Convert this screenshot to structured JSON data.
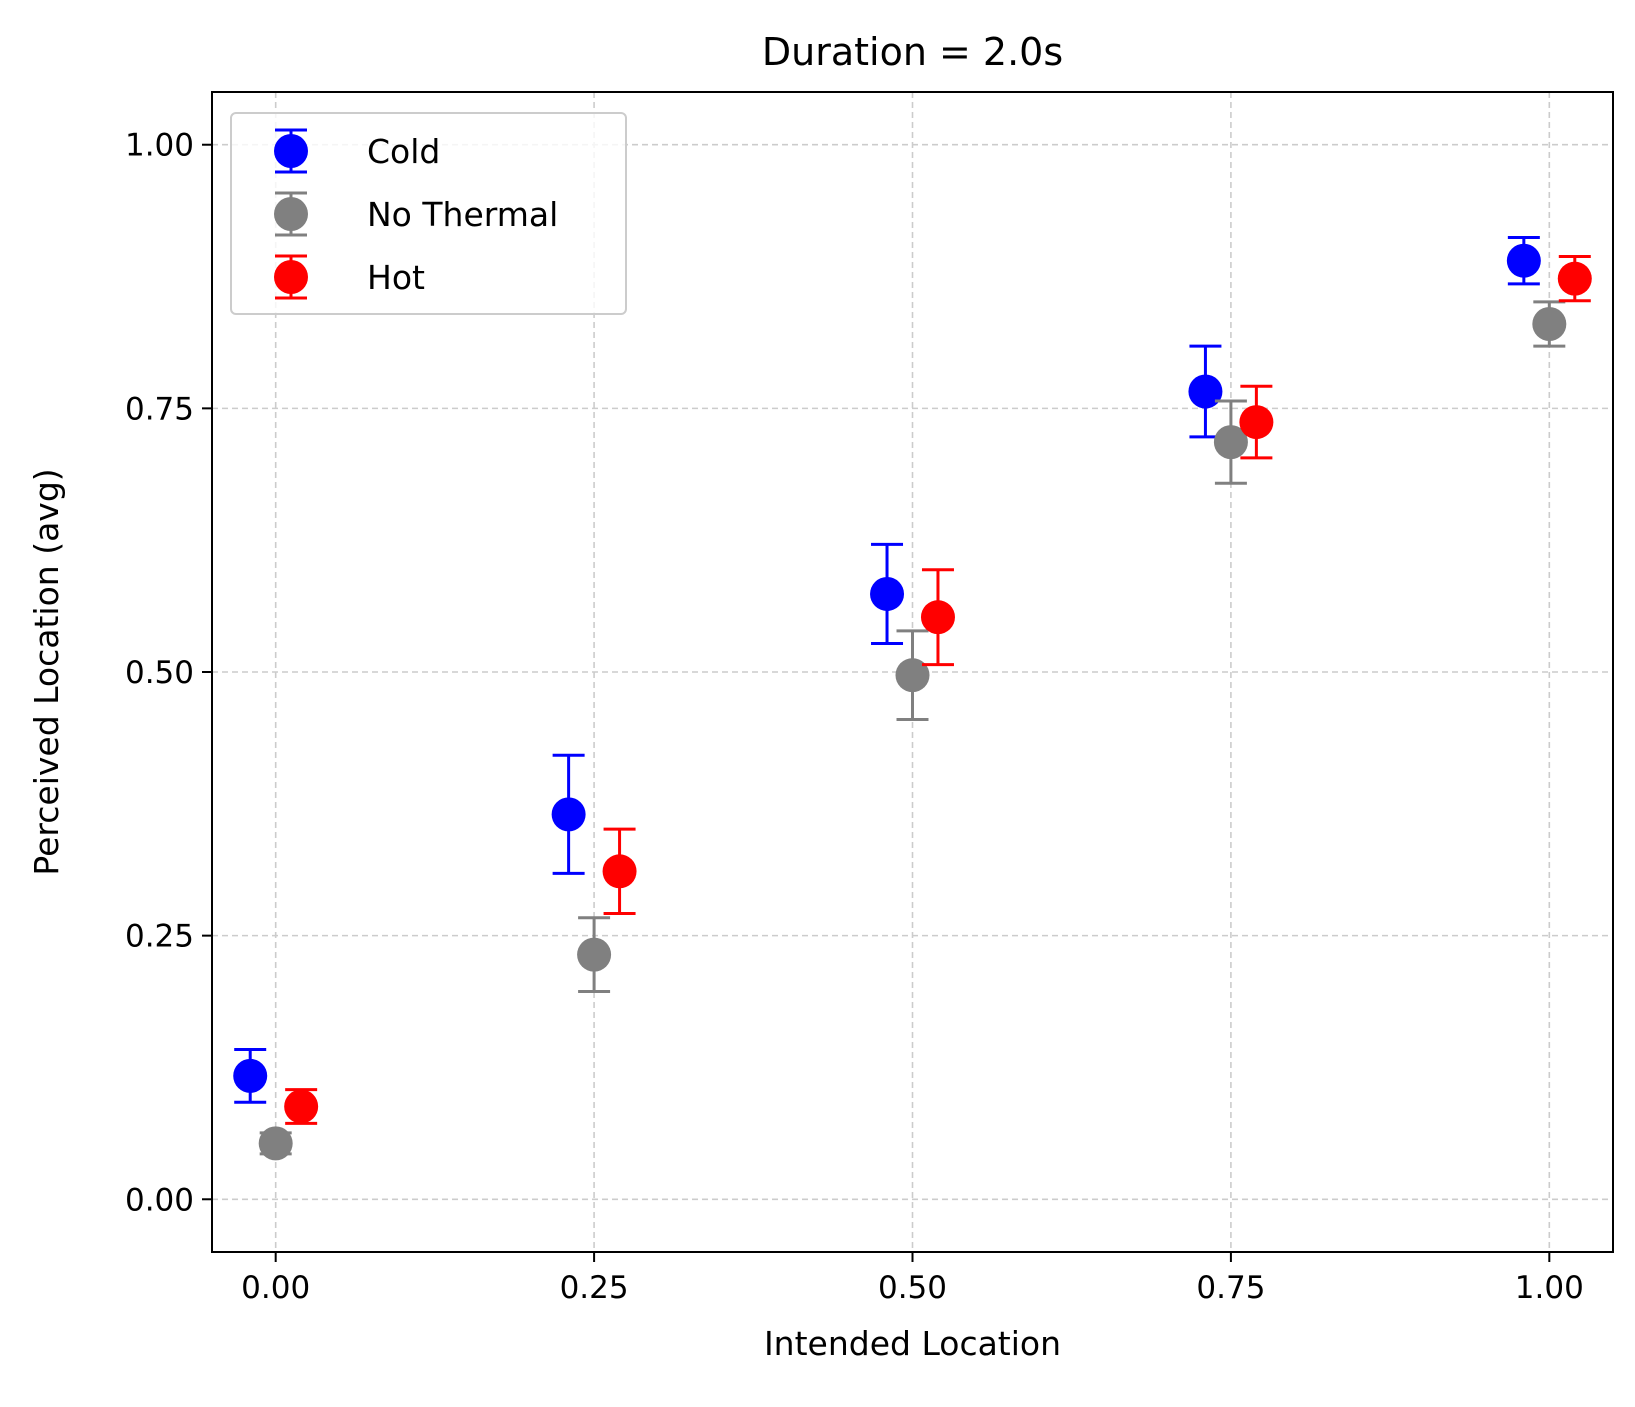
{
  "chart_data": {
    "type": "scatter",
    "title": "Duration = 2.0s",
    "xlabel": "Intended Location",
    "ylabel": "Perceived Location (avg)",
    "xlim": [
      -0.05,
      1.05
    ],
    "ylim": [
      -0.05,
      1.05
    ],
    "xticks": [
      0.0,
      0.25,
      0.5,
      0.75,
      1.0
    ],
    "xtick_labels": [
      "0.00",
      "0.25",
      "0.50",
      "0.75",
      "1.00"
    ],
    "yticks": [
      0.0,
      0.25,
      0.5,
      0.75,
      1.0
    ],
    "ytick_labels": [
      "0.00",
      "0.25",
      "0.50",
      "0.75",
      "1.00"
    ],
    "grid": true,
    "legend_position": "top-left",
    "series": [
      {
        "name": "Cold",
        "color": "#0000ff",
        "x": [
          -0.02,
          0.23,
          0.48,
          0.73,
          0.98
        ],
        "y": [
          0.117,
          0.365,
          0.574,
          0.766,
          0.89
        ],
        "err": [
          0.025,
          0.056,
          0.047,
          0.043,
          0.022
        ]
      },
      {
        "name": "No Thermal",
        "color": "#808080",
        "x": [
          0.0,
          0.25,
          0.5,
          0.75,
          1.0
        ],
        "y": [
          0.053,
          0.232,
          0.497,
          0.718,
          0.83
        ],
        "err": [
          0.01,
          0.035,
          0.042,
          0.039,
          0.021
        ]
      },
      {
        "name": "Hot",
        "color": "#ff0000",
        "x": [
          0.02,
          0.27,
          0.52,
          0.77,
          1.02
        ],
        "y": [
          0.088,
          0.311,
          0.552,
          0.737,
          0.873
        ],
        "err": [
          0.016,
          0.04,
          0.045,
          0.034,
          0.021
        ]
      }
    ]
  }
}
